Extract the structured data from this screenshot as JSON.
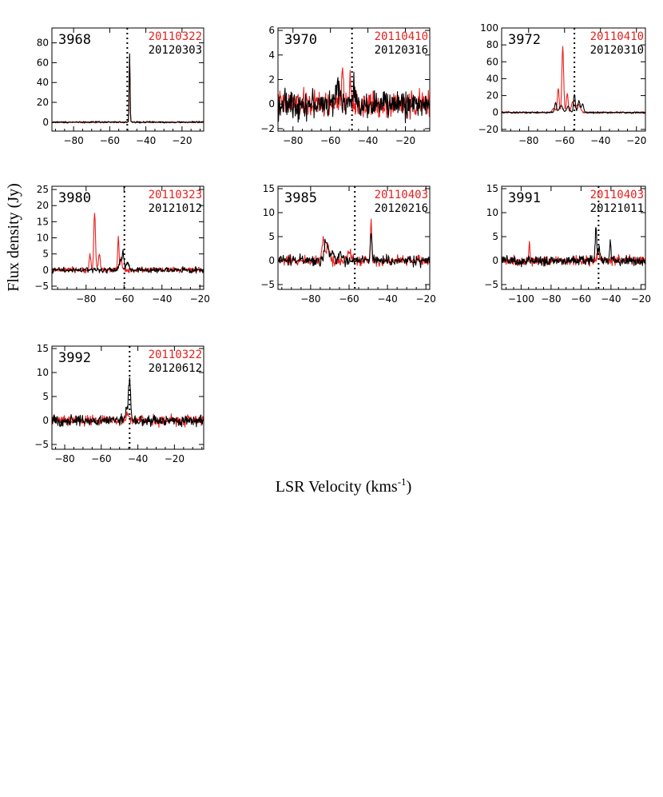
{
  "figure": {
    "ylabel": "Flux density (Jy)",
    "xlabel": "LSR Velocity (kms",
    "xlabel_sup": "-1",
    "xlabel_close": ")"
  },
  "colors": {
    "epoch1": "#e8201e",
    "epoch2": "#000000"
  },
  "chart_data": [
    {
      "type": "line",
      "id": "3968",
      "xlim": [
        -92,
        -8
      ],
      "ylim": [
        -9,
        95
      ],
      "xticks": [
        -80,
        -60,
        -40,
        -20
      ],
      "yticks": [
        0,
        20,
        40,
        60,
        80
      ],
      "ref_velocity": -50.3,
      "series": [
        {
          "name": "20110322",
          "color": "#e8201e",
          "noise": 0.5,
          "peaks": [
            [
              -49.0,
              66,
              0.25
            ]
          ]
        },
        {
          "name": "20120303",
          "color": "#000000",
          "noise": 0.6,
          "peaks": [
            [
              -49.0,
              70,
              0.25
            ]
          ]
        }
      ]
    },
    {
      "type": "line",
      "id": "3970",
      "xlim": [
        -88,
        -7
      ],
      "ylim": [
        -2.2,
        6.2
      ],
      "xticks": [
        -80,
        -60,
        -40,
        -20
      ],
      "yticks": [
        -2,
        0,
        2,
        4,
        6
      ],
      "ref_velocity": -48.5,
      "series": [
        {
          "name": "20110410",
          "color": "#e8201e",
          "noise": 0.8,
          "peaks": [
            [
              -53.5,
              3.0,
              0.4
            ],
            [
              -49.5,
              1.8,
              0.6
            ]
          ]
        },
        {
          "name": "20120316",
          "color": "#000000",
          "noise": 0.8,
          "peaks": [
            [
              -55.5,
              1.2,
              1.5
            ],
            [
              -47.5,
              1.8,
              0.4
            ]
          ]
        }
      ]
    },
    {
      "type": "line",
      "id": "3972",
      "xlim": [
        -95,
        -15
      ],
      "ylim": [
        -22,
        100
      ],
      "xticks": [
        -80,
        -60,
        -40,
        -20
      ],
      "yticks": [
        -20,
        0,
        20,
        40,
        60,
        80,
        100
      ],
      "ref_velocity": -54.5,
      "series": [
        {
          "name": "20110410",
          "color": "#e8201e",
          "noise": 0.7,
          "peaks": [
            [
              -61.0,
              78,
              0.5
            ],
            [
              -63.5,
              28,
              0.5
            ],
            [
              -58.5,
              22,
              0.5
            ],
            [
              -55.5,
              12,
              0.8
            ],
            [
              -52.5,
              10,
              1.2
            ],
            [
              -66.0,
              5,
              0.8
            ]
          ]
        },
        {
          "name": "20120310",
          "color": "#000000",
          "noise": 0.7,
          "peaks": [
            [
              -65.0,
              12,
              0.5
            ],
            [
              -62.0,
              8,
              1.0
            ],
            [
              -58.0,
              7,
              0.8
            ],
            [
              -54.5,
              22,
              0.5
            ],
            [
              -52.0,
              14,
              0.6
            ],
            [
              -50.0,
              10,
              0.6
            ]
          ]
        }
      ]
    },
    {
      "type": "line",
      "id": "3980",
      "xlim": [
        -98,
        -18
      ],
      "ylim": [
        -6,
        26
      ],
      "xticks": [
        -80,
        -60,
        -40,
        -20
      ],
      "yticks": [
        -5,
        0,
        5,
        10,
        15,
        20,
        25
      ],
      "ref_velocity": -59.8,
      "series": [
        {
          "name": "20110323",
          "color": "#e8201e",
          "noise": 0.6,
          "peaks": [
            [
              -75.5,
              18,
              0.45
            ],
            [
              -78.0,
              5,
              0.4
            ],
            [
              -73.0,
              5,
              0.5
            ],
            [
              -63.0,
              11,
              0.35
            ],
            [
              -61.5,
              4,
              0.4
            ]
          ]
        },
        {
          "name": "20121012",
          "color": "#000000",
          "noise": 0.6,
          "peaks": [
            [
              -60.5,
              5.5,
              0.5
            ],
            [
              -62.0,
              3,
              0.6
            ],
            [
              -58.0,
              2,
              0.8
            ]
          ]
        }
      ]
    },
    {
      "type": "line",
      "id": "3985",
      "xlim": [
        -97,
        -18
      ],
      "ylim": [
        -6,
        15.5
      ],
      "xticks": [
        -80,
        -60,
        -40,
        -20
      ],
      "yticks": [
        -5,
        0,
        5,
        10,
        15
      ],
      "ref_velocity": -57.0,
      "series": [
        {
          "name": "20110403",
          "color": "#e8201e",
          "noise": 0.8,
          "peaks": [
            [
              -73.5,
              5,
              0.6
            ],
            [
              -71.0,
              3,
              0.8
            ],
            [
              -48.5,
              8,
              0.35
            ],
            [
              -60.0,
              1.5,
              1.5
            ]
          ]
        },
        {
          "name": "20120216",
          "color": "#000000",
          "noise": 0.8,
          "peaks": [
            [
              -72.0,
              4.5,
              0.8
            ],
            [
              -69.0,
              2,
              1.0
            ],
            [
              -64.0,
              1.5,
              1.0
            ],
            [
              -48.5,
              6.5,
              0.35
            ]
          ]
        }
      ]
    },
    {
      "type": "line",
      "id": "3991",
      "xlim": [
        -113,
        -17
      ],
      "ylim": [
        -6,
        15.5
      ],
      "xticks": [
        -100,
        -80,
        -60,
        -40,
        -20
      ],
      "yticks": [
        -5,
        0,
        5,
        10,
        15
      ],
      "ref_velocity": -48.3,
      "series": [
        {
          "name": "20110403",
          "color": "#e8201e",
          "noise": 0.7,
          "peaks": [
            [
              -94.5,
              4.5,
              0.3
            ],
            [
              -48.5,
              2,
              0.6
            ]
          ]
        },
        {
          "name": "20121011",
          "color": "#000000",
          "noise": 0.7,
          "peaks": [
            [
              -50.0,
              7,
              0.5
            ],
            [
              -48.0,
              3,
              0.6
            ],
            [
              -40.5,
              4,
              0.45
            ]
          ]
        }
      ]
    },
    {
      "type": "line",
      "id": "3992",
      "xlim": [
        -87,
        -4
      ],
      "ylim": [
        -6,
        15.5
      ],
      "xticks": [
        -80,
        -60,
        -40,
        -20
      ],
      "yticks": [
        -5,
        0,
        5,
        10,
        15
      ],
      "ref_velocity": -44.5,
      "series": [
        {
          "name": "20110322",
          "color": "#e8201e",
          "noise": 0.8,
          "peaks": [
            [
              -45.5,
              1.2,
              1.0
            ]
          ]
        },
        {
          "name": "20120612",
          "color": "#000000",
          "noise": 0.8,
          "peaks": [
            [
              -44.5,
              8.5,
              0.55
            ],
            [
              -46.0,
              3,
              0.6
            ]
          ]
        }
      ]
    }
  ]
}
